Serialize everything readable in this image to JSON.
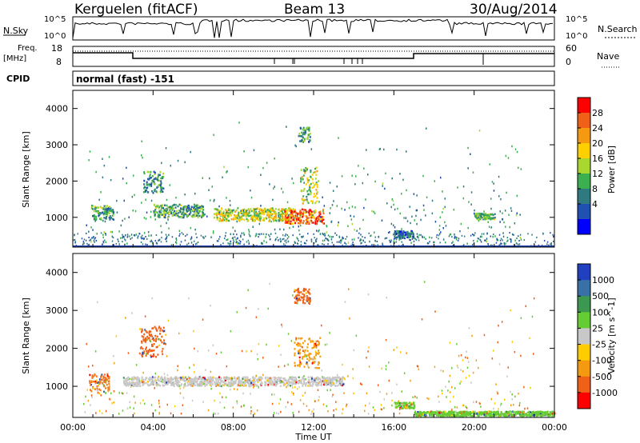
{
  "header": {
    "station": "Kerguelen (fitACF)",
    "beam": "Beam 13",
    "date": "30/Aug/2014"
  },
  "top_panels": {
    "nsky_label": "N.Sky",
    "nsky_ticks": [
      "10^5",
      "10^0"
    ],
    "nsearch_label": "N.Search",
    "nsearch_ticks": [
      "10^5",
      "10^0"
    ],
    "freq_label_1": "Freq.",
    "freq_label_2": "[MHz]",
    "freq_ticks": [
      "18",
      "8"
    ],
    "nave_label": "Nave",
    "nave_ticks": [
      "60",
      "0"
    ],
    "cpid_label": "CPID",
    "cpid_value": "normal (fast) -151"
  },
  "chart_data": [
    {
      "type": "heatmap",
      "panel": "power",
      "ylabel": "Slant Range [km]",
      "y_ticks": [
        "4000",
        "3000",
        "2000",
        "1000"
      ],
      "y_tick_values": [
        4000,
        3000,
        2000,
        1000
      ],
      "ylim": [
        180,
        4500
      ],
      "xlim_hours": [
        0,
        24
      ],
      "colorbar_label": "Power [dB]",
      "colorbar_ticks": [
        "28",
        "24",
        "20",
        "16",
        "12",
        "8",
        "4"
      ],
      "colorbar_colors": [
        "#ff0000",
        "#f06018",
        "#f59a10",
        "#ffd000",
        "#a8d830",
        "#3cb050",
        "#2e7a80",
        "#2050b0",
        "#0000ff"
      ],
      "features": [
        {
          "t0": 0.9,
          "t1": 2.0,
          "r": 1150,
          "dr": 200,
          "level": 0.35
        },
        {
          "t0": 3.5,
          "t1": 4.5,
          "r": 2000,
          "dr": 300,
          "level": 0.3
        },
        {
          "t0": 4.0,
          "t1": 6.5,
          "r": 1200,
          "dr": 180,
          "level": 0.35
        },
        {
          "t0": 7.0,
          "t1": 11.0,
          "r": 1100,
          "dr": 180,
          "level": 0.55
        },
        {
          "t0": 10.5,
          "t1": 12.5,
          "r": 1050,
          "dr": 200,
          "level": 0.85
        },
        {
          "t0": 11.2,
          "t1": 11.8,
          "r": 3300,
          "dr": 200,
          "level": 0.35
        },
        {
          "t0": 11.3,
          "t1": 12.2,
          "r": 1900,
          "dr": 500,
          "level": 0.5
        },
        {
          "t0": 16.0,
          "t1": 17.0,
          "r": 550,
          "dr": 100,
          "level": 0.2
        },
        {
          "t0": 20.0,
          "t1": 21.0,
          "r": 1050,
          "dr": 80,
          "level": 0.35
        }
      ]
    },
    {
      "type": "heatmap",
      "panel": "velocity",
      "ylabel": "Slant Range [km]",
      "y_ticks": [
        "4000",
        "3000",
        "2000",
        "1000"
      ],
      "y_tick_values": [
        4000,
        3000,
        2000,
        1000
      ],
      "ylim": [
        180,
        4500
      ],
      "xlim_hours": [
        0,
        24
      ],
      "xlabel": "Time UT",
      "x_ticks": [
        "00:00",
        "04:00",
        "08:00",
        "12:00",
        "16:00",
        "20:00",
        "00:00"
      ],
      "x_tick_values": [
        0,
        4,
        8,
        12,
        16,
        20,
        24
      ],
      "colorbar_label": "Velocity [m s^-1]",
      "colorbar_ticks": [
        "1000",
        "500",
        "100",
        "25",
        "-25",
        "-100",
        "-500",
        "-1000"
      ],
      "colorbar_colors": [
        "#2040c0",
        "#3a70a8",
        "#3c9850",
        "#66cc33",
        "#c8c8c8",
        "#ffcc00",
        "#f59a10",
        "#f06018",
        "#ff0000"
      ],
      "features": [
        {
          "t0": 0.8,
          "t1": 1.8,
          "r": 1100,
          "dr": 250,
          "color": "#f07a20"
        },
        {
          "t0": 3.3,
          "t1": 4.6,
          "r": 2200,
          "dr": 400,
          "color": "#f06018"
        },
        {
          "t0": 2.5,
          "t1": 13.5,
          "r": 1150,
          "dr": 120,
          "color": "#c8c8c8"
        },
        {
          "t0": 11.0,
          "t1": 11.8,
          "r": 3400,
          "dr": 200,
          "color": "#f06018"
        },
        {
          "t0": 11.0,
          "t1": 12.3,
          "r": 1900,
          "dr": 400,
          "color": "#f5a010"
        },
        {
          "t0": 16.0,
          "t1": 17.0,
          "r": 520,
          "dr": 80,
          "color": "#66cc33"
        },
        {
          "t0": 17.0,
          "t1": 24.0,
          "r": 300,
          "dr": 60,
          "color": "#66cc33"
        }
      ]
    }
  ]
}
